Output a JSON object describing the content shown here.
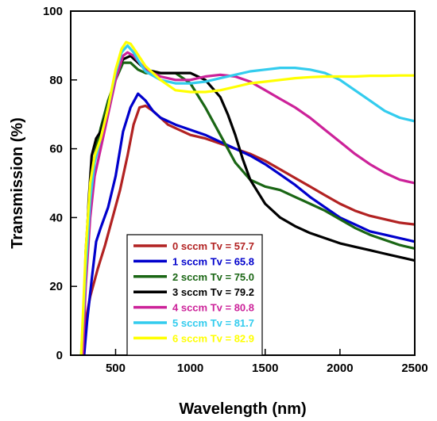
{
  "chart_data": {
    "type": "line",
    "xlabel": "Wavelength (nm)",
    "ylabel": "Transmission (%)",
    "xlim": [
      200,
      2500
    ],
    "ylim": [
      0,
      100
    ],
    "xticks": [
      500,
      1000,
      1500,
      2000,
      2500
    ],
    "yticks": [
      0,
      20,
      40,
      60,
      80,
      100
    ],
    "legend_position": "bottom-left",
    "grid": false,
    "series": [
      {
        "name": "0 sccm Tv = 57.7",
        "color": "#b22222",
        "x": [
          270,
          300,
          330,
          380,
          430,
          480,
          530,
          580,
          620,
          660,
          700,
          750,
          800,
          850,
          900,
          1000,
          1100,
          1200,
          1300,
          1400,
          1500,
          1600,
          1700,
          1800,
          1900,
          2000,
          2100,
          2200,
          2300,
          2400,
          2500
        ],
        "y": [
          0,
          10,
          17,
          25,
          32,
          40,
          48,
          58,
          67,
          72,
          72.5,
          71,
          69,
          67,
          66,
          64,
          63,
          61.5,
          60,
          58.5,
          56.5,
          54,
          51.5,
          49,
          46.5,
          44,
          42,
          40.5,
          39.5,
          38.5,
          38
        ]
      },
      {
        "name": "1 sccm Tv = 65.8",
        "color": "#0000cc",
        "x": [
          290,
          310,
          340,
          370,
          400,
          450,
          500,
          550,
          600,
          650,
          700,
          750,
          800,
          900,
          1000,
          1100,
          1200,
          1300,
          1400,
          1500,
          1600,
          1700,
          1800,
          1900,
          2000,
          2100,
          2200,
          2300,
          2400,
          2500
        ],
        "y": [
          0,
          10,
          22,
          33,
          37,
          43,
          52,
          65,
          72,
          76,
          74,
          71,
          69,
          67,
          65.5,
          64,
          62,
          60,
          58,
          55.5,
          52.5,
          49.5,
          46,
          43,
          40,
          38,
          36,
          35,
          34,
          33
        ]
      },
      {
        "name": "2 sccm Tv = 75.0",
        "color": "#1a6614",
        "x": [
          280,
          300,
          330,
          360,
          400,
          450,
          500,
          550,
          600,
          650,
          700,
          800,
          900,
          1000,
          1100,
          1200,
          1300,
          1400,
          1500,
          1600,
          1700,
          1800,
          1900,
          2000,
          2100,
          2200,
          2300,
          2400,
          2500
        ],
        "y": [
          0,
          30,
          50,
          58,
          66,
          74,
          80,
          85,
          85,
          83,
          82,
          82,
          82,
          79,
          72,
          64,
          56,
          51,
          49,
          48,
          46,
          44,
          42,
          39.5,
          37,
          35,
          33.5,
          32,
          31
        ]
      },
      {
        "name": "3 sccm Tv = 79.2",
        "color": "#000000",
        "x": [
          280,
          300,
          320,
          340,
          370,
          400,
          450,
          500,
          550,
          600,
          650,
          700,
          800,
          900,
          1000,
          1100,
          1200,
          1250,
          1300,
          1350,
          1400,
          1500,
          1600,
          1700,
          1800,
          1900,
          2000,
          2100,
          2200,
          2300,
          2400,
          2500
        ],
        "y": [
          0,
          25,
          45,
          58,
          63,
          65,
          72,
          82,
          86,
          87,
          85,
          83,
          82,
          82,
          82,
          80,
          75,
          70,
          64,
          57,
          51,
          44,
          40,
          37.5,
          35.5,
          34,
          32.5,
          31.5,
          30.5,
          29.5,
          28.5,
          27.5
        ]
      },
      {
        "name": "4 sccm Tv = 80.8",
        "color": "#cc2299",
        "x": [
          280,
          300,
          330,
          360,
          400,
          450,
          500,
          550,
          580,
          620,
          660,
          700,
          800,
          900,
          1000,
          1100,
          1200,
          1300,
          1400,
          1500,
          1600,
          1700,
          1800,
          1900,
          2000,
          2100,
          2200,
          2300,
          2400,
          2500
        ],
        "y": [
          0,
          20,
          40,
          52,
          60,
          70,
          80,
          87,
          88,
          87,
          85,
          83,
          81,
          80,
          80,
          81,
          81.5,
          81,
          79.5,
          77,
          74.5,
          72,
          69,
          65.5,
          62,
          58.5,
          55.5,
          53,
          51,
          50
        ]
      },
      {
        "name": "5 sccm Tv = 81.7",
        "color": "#33ccee",
        "x": [
          270,
          300,
          330,
          360,
          400,
          450,
          500,
          540,
          580,
          620,
          660,
          700,
          800,
          900,
          1000,
          1100,
          1200,
          1300,
          1400,
          1500,
          1600,
          1700,
          1800,
          1900,
          2000,
          2100,
          2200,
          2300,
          2400,
          2500
        ],
        "y": [
          0,
          25,
          45,
          56,
          63,
          72,
          82,
          88,
          90,
          88,
          85,
          82.5,
          80,
          79,
          79,
          79.5,
          80.5,
          81.5,
          82.5,
          83,
          83.5,
          83.5,
          83,
          82,
          80,
          77,
          74,
          71,
          69,
          68
        ]
      },
      {
        "name": "6 sccm Tv = 82.9",
        "color": "#ffff00",
        "x": [
          270,
          300,
          330,
          360,
          400,
          450,
          500,
          540,
          570,
          600,
          640,
          700,
          800,
          900,
          1000,
          1100,
          1200,
          1300,
          1400,
          1500,
          1600,
          1700,
          1800,
          1900,
          2000,
          2100,
          2200,
          2300,
          2400,
          2500
        ],
        "y": [
          0,
          30,
          50,
          58,
          63,
          72,
          83,
          89,
          91,
          90.5,
          88,
          84,
          80,
          77,
          76.5,
          76.5,
          77,
          78,
          79,
          79.5,
          80,
          80.5,
          80.8,
          81,
          81,
          81,
          81.2,
          81.2,
          81.3,
          81.3
        ]
      }
    ]
  }
}
